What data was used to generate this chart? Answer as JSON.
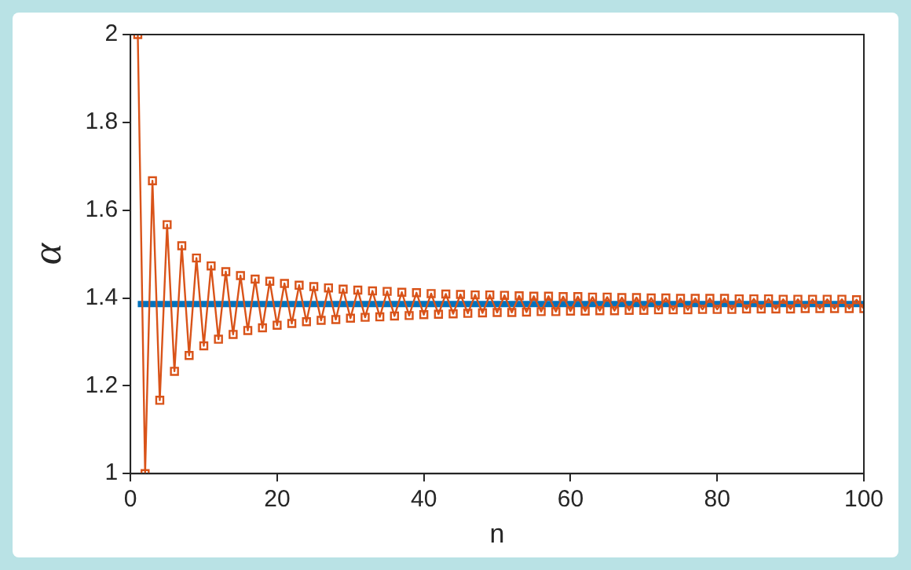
{
  "chart_data": {
    "type": "line",
    "xlabel": "n",
    "ylabel": "α",
    "xlim": [
      0,
      100
    ],
    "xticks": [
      0,
      20,
      40,
      60,
      80,
      100
    ],
    "ylim": [
      1,
      2
    ],
    "yticks": [
      1,
      1.2,
      1.4,
      1.6,
      1.8,
      2
    ],
    "grid": false,
    "legend": false,
    "marker": "square",
    "line_style": "solid",
    "series": [
      {
        "color": "#d95319",
        "x": [
          1,
          2,
          3,
          4,
          5,
          6,
          7,
          8,
          9,
          10,
          11,
          12,
          13,
          14,
          15,
          16,
          17,
          18,
          19,
          20,
          21,
          22,
          23,
          24,
          25,
          26,
          27,
          28,
          29,
          30,
          31,
          32,
          33,
          34,
          35,
          36,
          37,
          38,
          39,
          40,
          41,
          42,
          43,
          44,
          45,
          46,
          47,
          48,
          49,
          50,
          51,
          52,
          53,
          54,
          55,
          56,
          57,
          58,
          59,
          60,
          61,
          62,
          63,
          64,
          65,
          66,
          67,
          68,
          69,
          70,
          71,
          72,
          73,
          74,
          75,
          76,
          77,
          78,
          79,
          80,
          81,
          82,
          83,
          84,
          85,
          86,
          87,
          88,
          89,
          90,
          91,
          92,
          93,
          94,
          95,
          96,
          97,
          98,
          99,
          100
        ],
        "values": [
          2,
          1,
          1.667,
          1.167,
          1.567,
          1.233,
          1.519,
          1.269,
          1.491,
          1.291,
          1.473,
          1.306,
          1.46,
          1.317,
          1.451,
          1.326,
          1.443,
          1.332,
          1.438,
          1.338,
          1.433,
          1.342,
          1.429,
          1.346,
          1.426,
          1.349,
          1.423,
          1.351,
          1.42,
          1.354,
          1.418,
          1.356,
          1.416,
          1.357,
          1.415,
          1.359,
          1.413,
          1.36,
          1.412,
          1.362,
          1.41,
          1.363,
          1.409,
          1.364,
          1.408,
          1.365,
          1.407,
          1.366,
          1.407,
          1.367,
          1.406,
          1.367,
          1.405,
          1.368,
          1.404,
          1.369,
          1.404,
          1.369,
          1.403,
          1.37,
          1.403,
          1.37,
          1.402,
          1.371,
          1.402,
          1.371,
          1.401,
          1.372,
          1.401,
          1.372,
          1.4,
          1.373,
          1.4,
          1.373,
          1.399,
          1.373,
          1.399,
          1.374,
          1.399,
          1.374,
          1.399,
          1.374,
          1.398,
          1.375,
          1.398,
          1.375,
          1.398,
          1.375,
          1.397,
          1.375,
          1.397,
          1.376,
          1.397,
          1.376,
          1.397,
          1.376,
          1.397,
          1.376,
          1.396,
          1.376
        ]
      },
      {
        "color": "#0072bd",
        "marker": "none",
        "x": [
          1,
          100
        ],
        "values": [
          1.386,
          1.386
        ]
      }
    ]
  }
}
